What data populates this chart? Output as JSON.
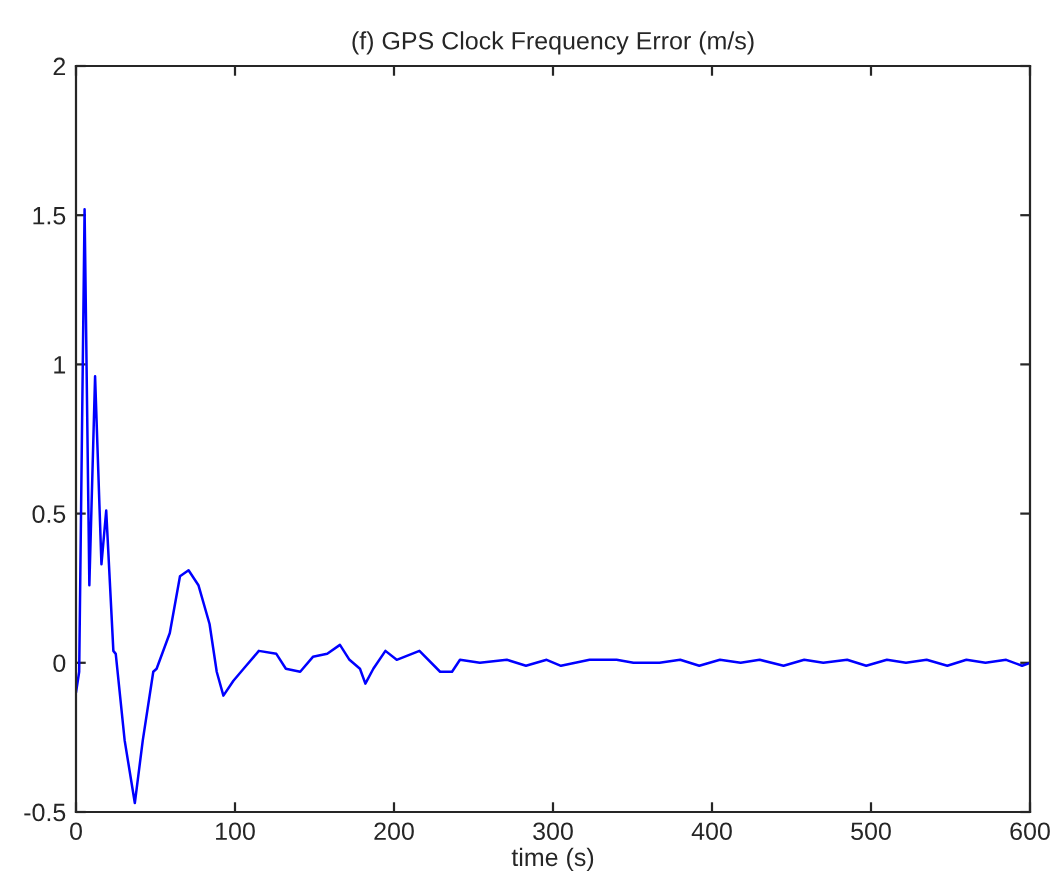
{
  "chart_data": {
    "type": "line",
    "title": "(f) GPS Clock Frequency Error (m/s)",
    "xlabel": "time (s)",
    "x": [
      0,
      2,
      5.4,
      8.4,
      12,
      16,
      19,
      23.5,
      25,
      30.6,
      37,
      42,
      48.6,
      50.7,
      59,
      65.4,
      70.8,
      77,
      84,
      88.5,
      92.7,
      99,
      107,
      115,
      126,
      132,
      141,
      149,
      158,
      166,
      172,
      178.6,
      182,
      187,
      194.6,
      201.7,
      216,
      229,
      236.5,
      241.5,
      254,
      271,
      283,
      296,
      305,
      323,
      340,
      350.6,
      367,
      380,
      392,
      405,
      418,
      430,
      445,
      458,
      470,
      485,
      497,
      510,
      522,
      535,
      548,
      560,
      572,
      585,
      595,
      600
    ],
    "values": [
      -0.1,
      -0.03,
      1.52,
      0.26,
      0.96,
      0.33,
      0.51,
      0.04,
      0.03,
      -0.26,
      -0.47,
      -0.26,
      -0.03,
      -0.02,
      0.1,
      0.29,
      0.31,
      0.26,
      0.13,
      -0.03,
      -0.11,
      -0.06,
      -0.01,
      0.04,
      0.03,
      -0.02,
      -0.03,
      0.02,
      0.03,
      0.06,
      0.01,
      -0.02,
      -0.07,
      -0.02,
      0.04,
      0.01,
      0.04,
      -0.03,
      -0.03,
      0.01,
      0.0,
      0.01,
      -0.01,
      0.01,
      -0.01,
      0.01,
      0.01,
      0.0,
      0.0,
      0.01,
      -0.01,
      0.01,
      0.0,
      0.01,
      -0.01,
      0.01,
      0.0,
      0.01,
      -0.01,
      0.01,
      0.0,
      0.01,
      -0.01,
      0.01,
      0.0,
      0.01,
      -0.01,
      0.0
    ],
    "color": "#0000ff",
    "xlim": [
      0,
      600
    ],
    "ylim": [
      -0.5,
      2
    ],
    "xticks": [
      0,
      100,
      200,
      300,
      400,
      500,
      600
    ],
    "yticks": [
      -0.5,
      0,
      0.5,
      1,
      1.5,
      2
    ],
    "grid": false,
    "legend": false
  }
}
